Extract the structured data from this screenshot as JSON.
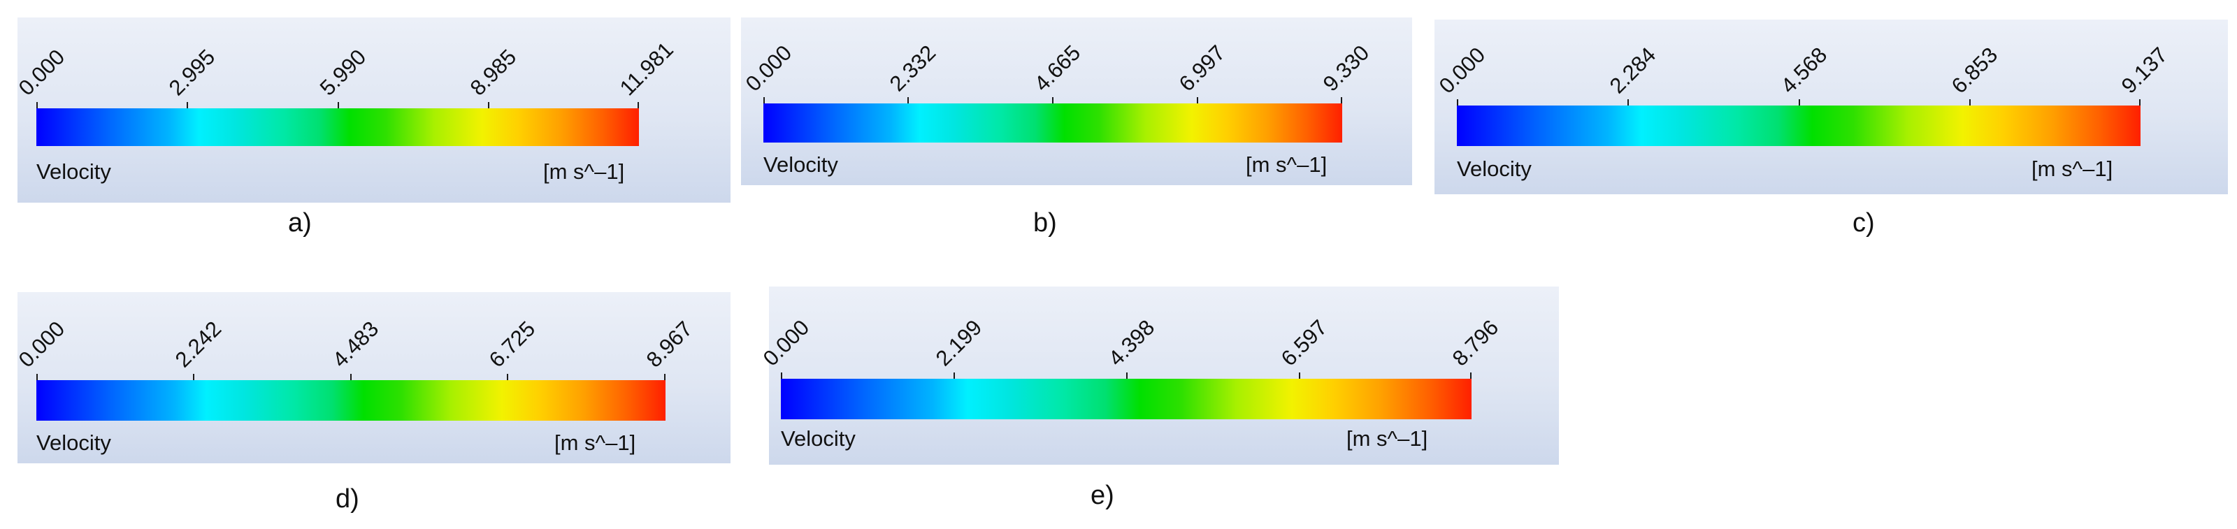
{
  "legends": [
    {
      "caption": "a)",
      "variable": "Velocity",
      "unit": "[m s^–1]",
      "ticks": [
        "0.000",
        "2.995",
        "5.990",
        "8.985",
        "11.981"
      ]
    },
    {
      "caption": "b)",
      "variable": "Velocity",
      "unit": "[m s^–1]",
      "ticks": [
        "0.000",
        "2.332",
        "4.665",
        "6.997",
        "9.330"
      ]
    },
    {
      "caption": "c)",
      "variable": "Velocity",
      "unit": "[m s^–1]",
      "ticks": [
        "0.000",
        "2.284",
        "4.568",
        "6.853",
        "9.137"
      ]
    },
    {
      "caption": "d)",
      "variable": "Velocity",
      "unit": "[m s^–1]",
      "ticks": [
        "0.000",
        "2.242",
        "4.483",
        "6.725",
        "8.967"
      ]
    },
    {
      "caption": "e)",
      "variable": "Velocity",
      "unit": "[m s^–1]",
      "ticks": [
        "0.000",
        "2.199",
        "4.398",
        "6.597",
        "8.796"
      ]
    }
  ]
}
